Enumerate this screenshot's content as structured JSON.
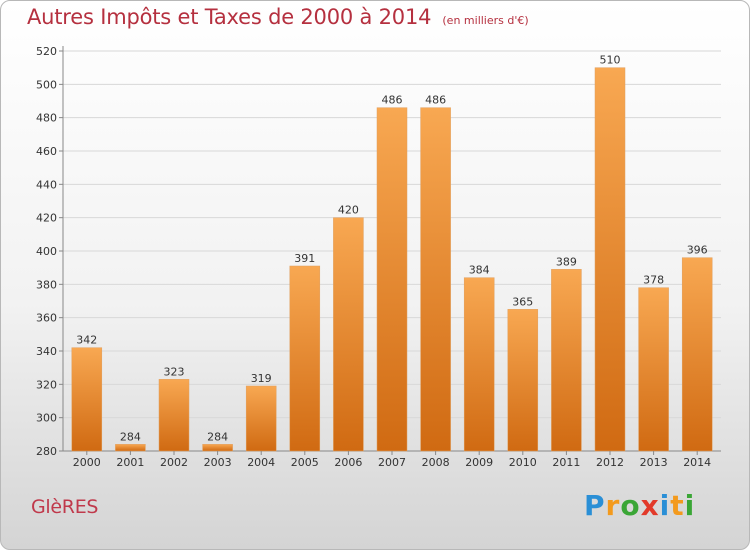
{
  "header": {
    "title": "Autres Impôts et Taxes de 2000 à 2014",
    "unit": "(en milliers d'€)"
  },
  "footer": {
    "city": "GlèRES",
    "logo": [
      "P",
      "r",
      "o",
      "x",
      "i",
      "t",
      "i"
    ],
    "logo_colors": [
      "#2a8fd6",
      "#f39a1d",
      "#3aa636",
      "#e23a2a",
      "#2a8fd6",
      "#f39a1d",
      "#3aa636"
    ]
  },
  "colors": {
    "bar_top": "#f8a852",
    "bar_bottom": "#d06a12",
    "grid": "#d8d8d8",
    "title": "#b5303f"
  },
  "chart_data": {
    "type": "bar",
    "title": "Autres Impôts et Taxes de 2000 à 2014",
    "subtitle": "(en milliers d'€)",
    "categories": [
      "2000",
      "2001",
      "2002",
      "2003",
      "2004",
      "2005",
      "2006",
      "2007",
      "2008",
      "2009",
      "2010",
      "2011",
      "2012",
      "2013",
      "2014"
    ],
    "values": [
      342,
      284,
      323,
      284,
      319,
      391,
      420,
      486,
      486,
      384,
      365,
      389,
      510,
      378,
      396
    ],
    "ylim": [
      280,
      520
    ],
    "yticks": [
      280,
      300,
      320,
      340,
      360,
      380,
      400,
      420,
      440,
      460,
      480,
      500,
      520
    ],
    "grid": true,
    "data_labels": true
  }
}
